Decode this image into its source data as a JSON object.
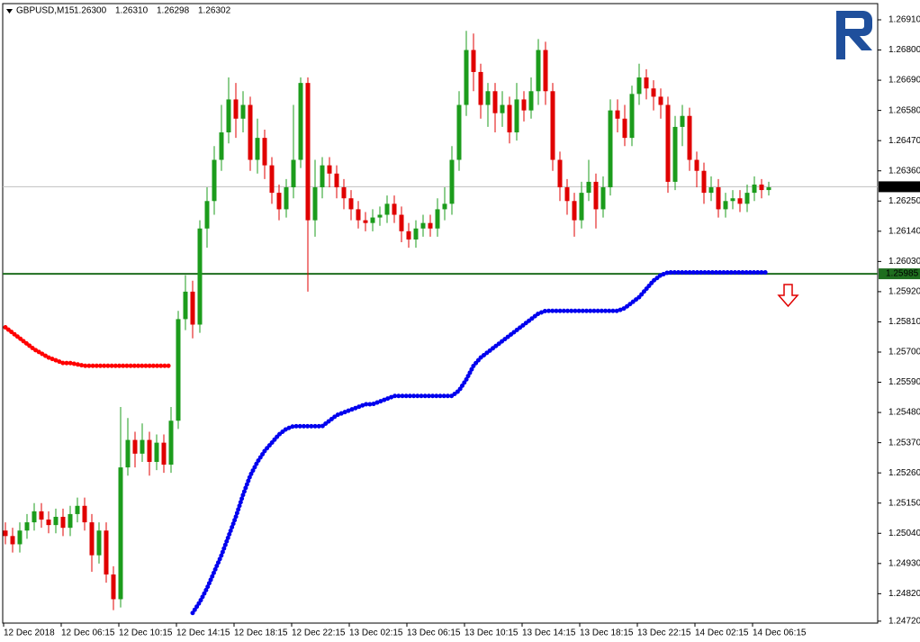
{
  "chart_data": {
    "type": "candlestick",
    "title": "GBPUSD,M15",
    "quote": [
      {
        "value": 1.263,
        "label": "1.26300"
      },
      {
        "value": 1.2631,
        "label": "1.26310"
      },
      {
        "value": 1.26298,
        "label": "1.26298"
      },
      {
        "value": 1.26302,
        "label": "1.26302"
      }
    ],
    "categories": [
      "12 Dec 2018",
      null,
      null,
      null,
      null,
      null,
      null,
      null,
      "12 Dec 06:15",
      null,
      null,
      null,
      null,
      null,
      null,
      null,
      "12 Dec 10:15",
      null,
      null,
      null,
      null,
      null,
      null,
      null,
      "12 Dec 14:15",
      null,
      null,
      null,
      null,
      null,
      null,
      null,
      "12 Dec 18:15",
      null,
      null,
      null,
      null,
      null,
      null,
      null,
      "12 Dec 22:15",
      null,
      null,
      null,
      null,
      null,
      null,
      null,
      "13 Dec 02:15",
      null,
      null,
      null,
      null,
      null,
      null,
      null,
      "13 Dec 06:15",
      null,
      null,
      null,
      null,
      null,
      null,
      null,
      "13 Dec 10:15",
      null,
      null,
      null,
      null,
      null,
      null,
      null,
      "13 Dec 14:15",
      null,
      null,
      null,
      null,
      null,
      null,
      null,
      "13 Dec 18:15",
      null,
      null,
      null,
      null,
      null,
      null,
      null,
      "13 Dec 22:15",
      null,
      null,
      null,
      null,
      null,
      null,
      null,
      "14 Dec 02:15",
      null,
      null,
      null,
      null,
      null,
      null,
      null,
      "14 Dec 06:15",
      null,
      null
    ],
    "series": [
      {
        "up_color": "#1c9c1c",
        "down_color": "#e00000",
        "open": [
          1.2505,
          1.2503,
          1.25,
          1.2505,
          1.2508,
          1.2512,
          1.2509,
          1.2507,
          1.251,
          1.2506,
          1.2511,
          1.2514,
          1.2508,
          1.2496,
          1.2505,
          1.2489,
          1.248,
          1.2528,
          1.2538,
          1.2533,
          1.2538,
          1.253,
          1.2537,
          1.2529,
          1.2545,
          1.2582,
          1.2592,
          1.258,
          1.2615,
          1.2625,
          1.264,
          1.265,
          1.2662,
          1.2655,
          1.266,
          1.264,
          1.2648,
          1.2638,
          1.2628,
          1.2622,
          1.263,
          1.264,
          1.2668,
          1.2618,
          1.263,
          1.2638,
          1.2635,
          1.263,
          1.2626,
          1.2622,
          1.2618,
          1.2617,
          1.2619,
          1.262,
          1.2624,
          1.262,
          1.2614,
          1.2611,
          1.2615,
          1.2617,
          1.2615,
          1.2622,
          1.2624,
          1.264,
          1.266,
          1.268,
          1.2672,
          1.266,
          1.2665,
          1.2657,
          1.266,
          1.265,
          1.2662,
          1.2658,
          1.2665,
          1.268,
          1.2665,
          1.264,
          1.263,
          1.2625,
          1.2618,
          1.2628,
          1.2632,
          1.2622,
          1.263,
          1.2658,
          1.2655,
          1.2648,
          1.2664,
          1.267,
          1.2666,
          1.2663,
          1.266,
          1.2632,
          1.2652,
          1.2656,
          1.264,
          1.2636,
          1.2628,
          1.263,
          1.2622,
          1.2625,
          1.2626,
          1.2624,
          1.2628,
          1.2631,
          1.2629
        ],
        "high": [
          1.2508,
          1.2506,
          1.2508,
          1.2511,
          1.2515,
          1.2515,
          1.2512,
          1.2513,
          1.2513,
          1.2514,
          1.2517,
          1.2517,
          1.2511,
          1.2508,
          1.2508,
          1.2492,
          1.255,
          1.2546,
          1.2541,
          1.2544,
          1.2541,
          1.254,
          1.254,
          1.255,
          1.2585,
          1.2598,
          1.2596,
          1.2618,
          1.263,
          1.2645,
          1.266,
          1.267,
          1.2668,
          1.2665,
          1.2663,
          1.2655,
          1.2651,
          1.2641,
          1.2631,
          1.2633,
          1.266,
          1.267,
          1.267,
          1.264,
          1.2641,
          1.2641,
          1.2638,
          1.2633,
          1.2629,
          1.2625,
          1.2621,
          1.2622,
          1.2623,
          1.2627,
          1.2627,
          1.2623,
          1.2617,
          1.2618,
          1.262,
          1.262,
          1.2626,
          1.263,
          1.2645,
          1.2665,
          1.2687,
          1.2686,
          1.2675,
          1.2668,
          1.2668,
          1.2665,
          1.2663,
          1.2668,
          1.2665,
          1.267,
          1.2684,
          1.2683,
          1.2668,
          1.2643,
          1.2633,
          1.2628,
          1.2632,
          1.264,
          1.2635,
          1.2634,
          1.2662,
          1.2662,
          1.266,
          1.2667,
          1.2675,
          1.2673,
          1.2669,
          1.2666,
          1.2663,
          1.2656,
          1.266,
          1.2659,
          1.2643,
          1.2639,
          1.2634,
          1.2633,
          1.2628,
          1.2629,
          1.2629,
          1.2631,
          1.2634,
          1.2633,
          1.2632
        ],
        "low": [
          1.25,
          1.2497,
          1.2497,
          1.2502,
          1.2505,
          1.2506,
          1.2504,
          1.2504,
          1.2503,
          1.2503,
          1.2508,
          1.2505,
          1.249,
          1.2493,
          1.2486,
          1.2476,
          1.2477,
          1.2525,
          1.2528,
          1.253,
          1.2525,
          1.2527,
          1.2526,
          1.2526,
          1.2542,
          1.2578,
          1.2575,
          1.2577,
          1.2608,
          1.262,
          1.2636,
          1.2646,
          1.2648,
          1.265,
          1.2636,
          1.2635,
          1.2633,
          1.2624,
          1.2618,
          1.2619,
          1.2626,
          1.2637,
          1.2592,
          1.2612,
          1.2626,
          1.263,
          1.2626,
          1.2622,
          1.2618,
          1.2615,
          1.2614,
          1.2614,
          1.2616,
          1.2617,
          1.2617,
          1.261,
          1.2608,
          1.2608,
          1.2612,
          1.2612,
          1.2612,
          1.2618,
          1.262,
          1.2636,
          1.2656,
          1.2665,
          1.2655,
          1.2652,
          1.265,
          1.2652,
          1.2646,
          1.2647,
          1.2654,
          1.2655,
          1.266,
          1.266,
          1.2636,
          1.2625,
          1.262,
          1.2612,
          1.2615,
          1.2625,
          1.2615,
          1.2619,
          1.2627,
          1.265,
          1.2645,
          1.2645,
          1.266,
          1.2662,
          1.2658,
          1.2655,
          1.2628,
          1.2629,
          1.2645,
          1.2636,
          1.263,
          1.2624,
          1.2625,
          1.2619,
          1.2619,
          1.2622,
          1.2621,
          1.2621,
          1.2625,
          1.2626,
          1.2627
        ],
        "close": [
          1.2503,
          1.25,
          1.2505,
          1.2508,
          1.2512,
          1.2509,
          1.2507,
          1.251,
          1.2506,
          1.2511,
          1.2514,
          1.2508,
          1.2496,
          1.2505,
          1.2489,
          1.248,
          1.2528,
          1.2538,
          1.2533,
          1.2538,
          1.253,
          1.2537,
          1.2529,
          1.2545,
          1.2582,
          1.2592,
          1.258,
          1.2615,
          1.2625,
          1.264,
          1.265,
          1.2662,
          1.2655,
          1.266,
          1.264,
          1.2648,
          1.2638,
          1.2628,
          1.2622,
          1.263,
          1.264,
          1.2668,
          1.2618,
          1.263,
          1.2638,
          1.2635,
          1.263,
          1.2626,
          1.2622,
          1.2618,
          1.2617,
          1.2619,
          1.262,
          1.2624,
          1.262,
          1.2614,
          1.2611,
          1.2615,
          1.2617,
          1.2615,
          1.2622,
          1.2624,
          1.264,
          1.266,
          1.268,
          1.2672,
          1.266,
          1.2665,
          1.2657,
          1.266,
          1.265,
          1.2662,
          1.2658,
          1.2665,
          1.268,
          1.2665,
          1.264,
          1.263,
          1.2625,
          1.2618,
          1.2628,
          1.2632,
          1.2622,
          1.263,
          1.2658,
          1.2655,
          1.2648,
          1.2664,
          1.267,
          1.2666,
          1.2663,
          1.266,
          1.2632,
          1.2652,
          1.2656,
          1.264,
          1.2636,
          1.2628,
          1.263,
          1.2622,
          1.2625,
          1.2626,
          1.2624,
          1.2628,
          1.2631,
          1.2629,
          1.263
        ]
      }
    ],
    "overlays": [
      {
        "color": "#ff0000",
        "values": [
          1.2579,
          1.2577,
          1.2575,
          1.2573,
          1.2571,
          1.25695,
          1.2568,
          1.2567,
          1.2566,
          1.2566,
          1.25655,
          1.2565,
          1.2565,
          1.2565,
          1.2565,
          1.2565,
          1.2565,
          1.2565,
          1.2565,
          1.2565,
          1.2565,
          1.2565,
          1.2565,
          1.2565,
          null,
          null,
          null,
          null,
          null,
          null,
          null,
          null,
          null,
          null,
          null,
          null,
          null,
          null,
          null,
          null,
          null,
          null,
          null,
          null,
          null,
          null,
          null,
          null,
          null,
          null,
          null,
          null,
          null,
          null,
          null,
          null,
          null,
          null,
          null,
          null,
          null,
          null,
          null,
          null,
          null,
          null,
          null,
          null,
          null,
          null,
          null,
          null,
          null,
          null,
          null,
          null,
          null,
          null,
          null,
          null,
          null,
          null,
          null,
          null,
          null,
          null,
          null,
          null,
          null,
          null,
          null,
          null,
          null,
          null,
          null,
          null,
          null
        ]
      },
      {
        "color": "#0000ee",
        "values": [
          null,
          null,
          null,
          null,
          null,
          null,
          null,
          null,
          null,
          null,
          null,
          null,
          null,
          null,
          null,
          null,
          null,
          null,
          null,
          null,
          null,
          null,
          null,
          null,
          null,
          null,
          1.2475,
          1.2479,
          1.2484,
          1.249,
          1.2496,
          1.2503,
          1.251,
          1.2518,
          1.2525,
          1.253,
          1.2534,
          1.2537,
          1.254,
          1.2542,
          1.2543,
          1.2543,
          1.2543,
          1.2543,
          1.2543,
          1.2545,
          1.2547,
          1.2548,
          1.2549,
          1.255,
          1.2551,
          1.2551,
          1.2552,
          1.2553,
          1.2554,
          1.2554,
          1.2554,
          1.2554,
          1.2554,
          1.2554,
          1.2554,
          1.2554,
          1.2554,
          1.2556,
          1.256,
          1.2565,
          1.2568,
          1.257,
          1.2572,
          1.2574,
          1.2576,
          1.2578,
          1.258,
          1.2582,
          1.2584,
          1.2585,
          1.2585,
          1.2585,
          1.2585,
          1.2585,
          1.2585,
          1.2585,
          1.2585,
          1.2585,
          1.2585,
          1.2585,
          1.2586,
          1.2588,
          1.259,
          1.2593,
          1.2596,
          1.2598,
          1.2599,
          1.2599,
          1.2599,
          1.2599,
          1.2599,
          1.2599,
          1.2599,
          1.2599,
          1.2599,
          1.2599,
          1.2599,
          1.2599,
          1.2599,
          1.2599,
          1.2599
        ]
      }
    ],
    "hlines": [
      {
        "value": 1.26302,
        "color": "#c0c0c0",
        "label_bg": "#000000",
        "label_color": "#ffffff"
      },
      {
        "value": 1.25985,
        "color": "#1f6e1f",
        "label_bg": "#1f6e1f",
        "label_color": "#ffffff"
      }
    ],
    "ylim": [
      1.24713,
      1.26969
    ],
    "yticks": [
      {
        "value": 1.2691,
        "label": "1.26910"
      },
      {
        "value": 1.268,
        "label": "1.26800"
      },
      {
        "value": 1.2669,
        "label": "1.26690"
      },
      {
        "value": 1.2658,
        "label": "1.26580"
      },
      {
        "value": 1.2647,
        "label": "1.26470"
      },
      {
        "value": 1.2636,
        "label": "1.26360"
      },
      {
        "value": 1.2625,
        "label": "1.26250"
      },
      {
        "value": 1.2614,
        "label": "1.26140"
      },
      {
        "value": 1.2603,
        "label": "1.26030"
      },
      {
        "value": 1.2592,
        "label": "1.25920"
      },
      {
        "value": 1.2581,
        "label": "1.25810"
      },
      {
        "value": 1.257,
        "label": "1.25700"
      },
      {
        "value": 1.2559,
        "label": "1.25590"
      },
      {
        "value": 1.2548,
        "label": "1.25480"
      },
      {
        "value": 1.2537,
        "label": "1.25370"
      },
      {
        "value": 1.2526,
        "label": "1.25260"
      },
      {
        "value": 1.2515,
        "label": "1.25150"
      },
      {
        "value": 1.2504,
        "label": "1.25040"
      },
      {
        "value": 1.2493,
        "label": "1.24930"
      },
      {
        "value": 1.2482,
        "label": "1.24820"
      },
      {
        "value": 1.2472,
        "label": "1.24720"
      }
    ],
    "grid": false
  }
}
